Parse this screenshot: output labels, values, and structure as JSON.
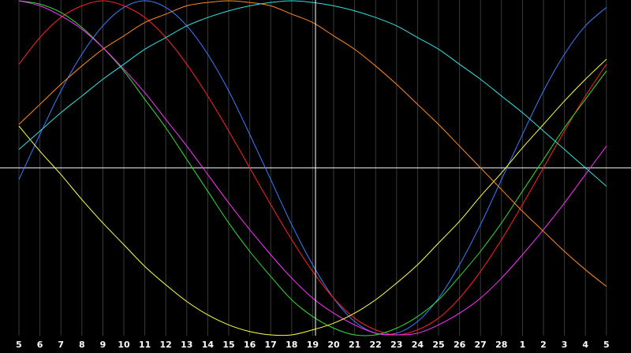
{
  "chart_data": {
    "type": "line",
    "categories": [
      "5",
      "6",
      "7",
      "8",
      "9",
      "10",
      "11",
      "12",
      "13",
      "14",
      "15",
      "16",
      "17",
      "18",
      "19",
      "20",
      "21",
      "22",
      "23",
      "24",
      "25",
      "26",
      "27",
      "28",
      "1",
      "2",
      "3",
      "4",
      "5"
    ],
    "ylim": [
      -100,
      100
    ],
    "grid": true,
    "series": [
      {
        "color": "#3a7fff",
        "values": [
          -7,
          20,
          46,
          68,
          85,
          96,
          100,
          96,
          85,
          68,
          46,
          20,
          -7,
          -34,
          -58,
          -78,
          -92,
          -99,
          -99,
          -92,
          -78,
          -58,
          -34,
          -7,
          20,
          46,
          68,
          85,
          96
        ]
      },
      {
        "color": "#ff2020",
        "values": [
          62,
          78,
          90,
          97,
          100,
          97,
          90,
          78,
          62,
          43,
          22,
          0,
          -22,
          -43,
          -62,
          -78,
          -90,
          -97,
          -100,
          -97,
          -90,
          -78,
          -62,
          -43,
          -22,
          0,
          22,
          43,
          62
        ]
      },
      {
        "color": "#30e030",
        "values": [
          100,
          98,
          93,
          84,
          72,
          58,
          41,
          24,
          5,
          -14,
          -33,
          -50,
          -65,
          -79,
          -89,
          -96,
          -100,
          -100,
          -96,
          -89,
          -79,
          -65,
          -50,
          -33,
          -14,
          5,
          24,
          41,
          58
        ]
      },
      {
        "color": "#ff30ff",
        "values": [
          100,
          97,
          91,
          83,
          72,
          59,
          45,
          29,
          13,
          -4,
          -21,
          -37,
          -52,
          -66,
          -78,
          -87,
          -94,
          -99,
          -100,
          -99,
          -94,
          -87,
          -78,
          -66,
          -52,
          -37,
          -21,
          -4,
          13
        ]
      },
      {
        "color": "#ffff40",
        "values": [
          25,
          10,
          -4,
          -19,
          -33,
          -46,
          -59,
          -70,
          -80,
          -88,
          -94,
          -98,
          -100,
          -100,
          -97,
          -93,
          -87,
          -79,
          -69,
          -58,
          -45,
          -32,
          -17,
          -3,
          12,
          26,
          40,
          53,
          65
        ]
      },
      {
        "color": "#ff8a20",
        "values": [
          26,
          38,
          50,
          61,
          71,
          79,
          87,
          92,
          97,
          99,
          100,
          99,
          97,
          92,
          87,
          79,
          71,
          61,
          50,
          38,
          26,
          13,
          0,
          -13,
          -26,
          -38,
          -50,
          -61,
          -71
        ]
      },
      {
        "color": "#30e0e0",
        "values": [
          11,
          22,
          33,
          43,
          53,
          62,
          71,
          78,
          85,
          90,
          94,
          97,
          99,
          100,
          99,
          97,
          94,
          90,
          85,
          78,
          71,
          62,
          53,
          43,
          33,
          22,
          11,
          0,
          -11
        ]
      }
    ]
  }
}
